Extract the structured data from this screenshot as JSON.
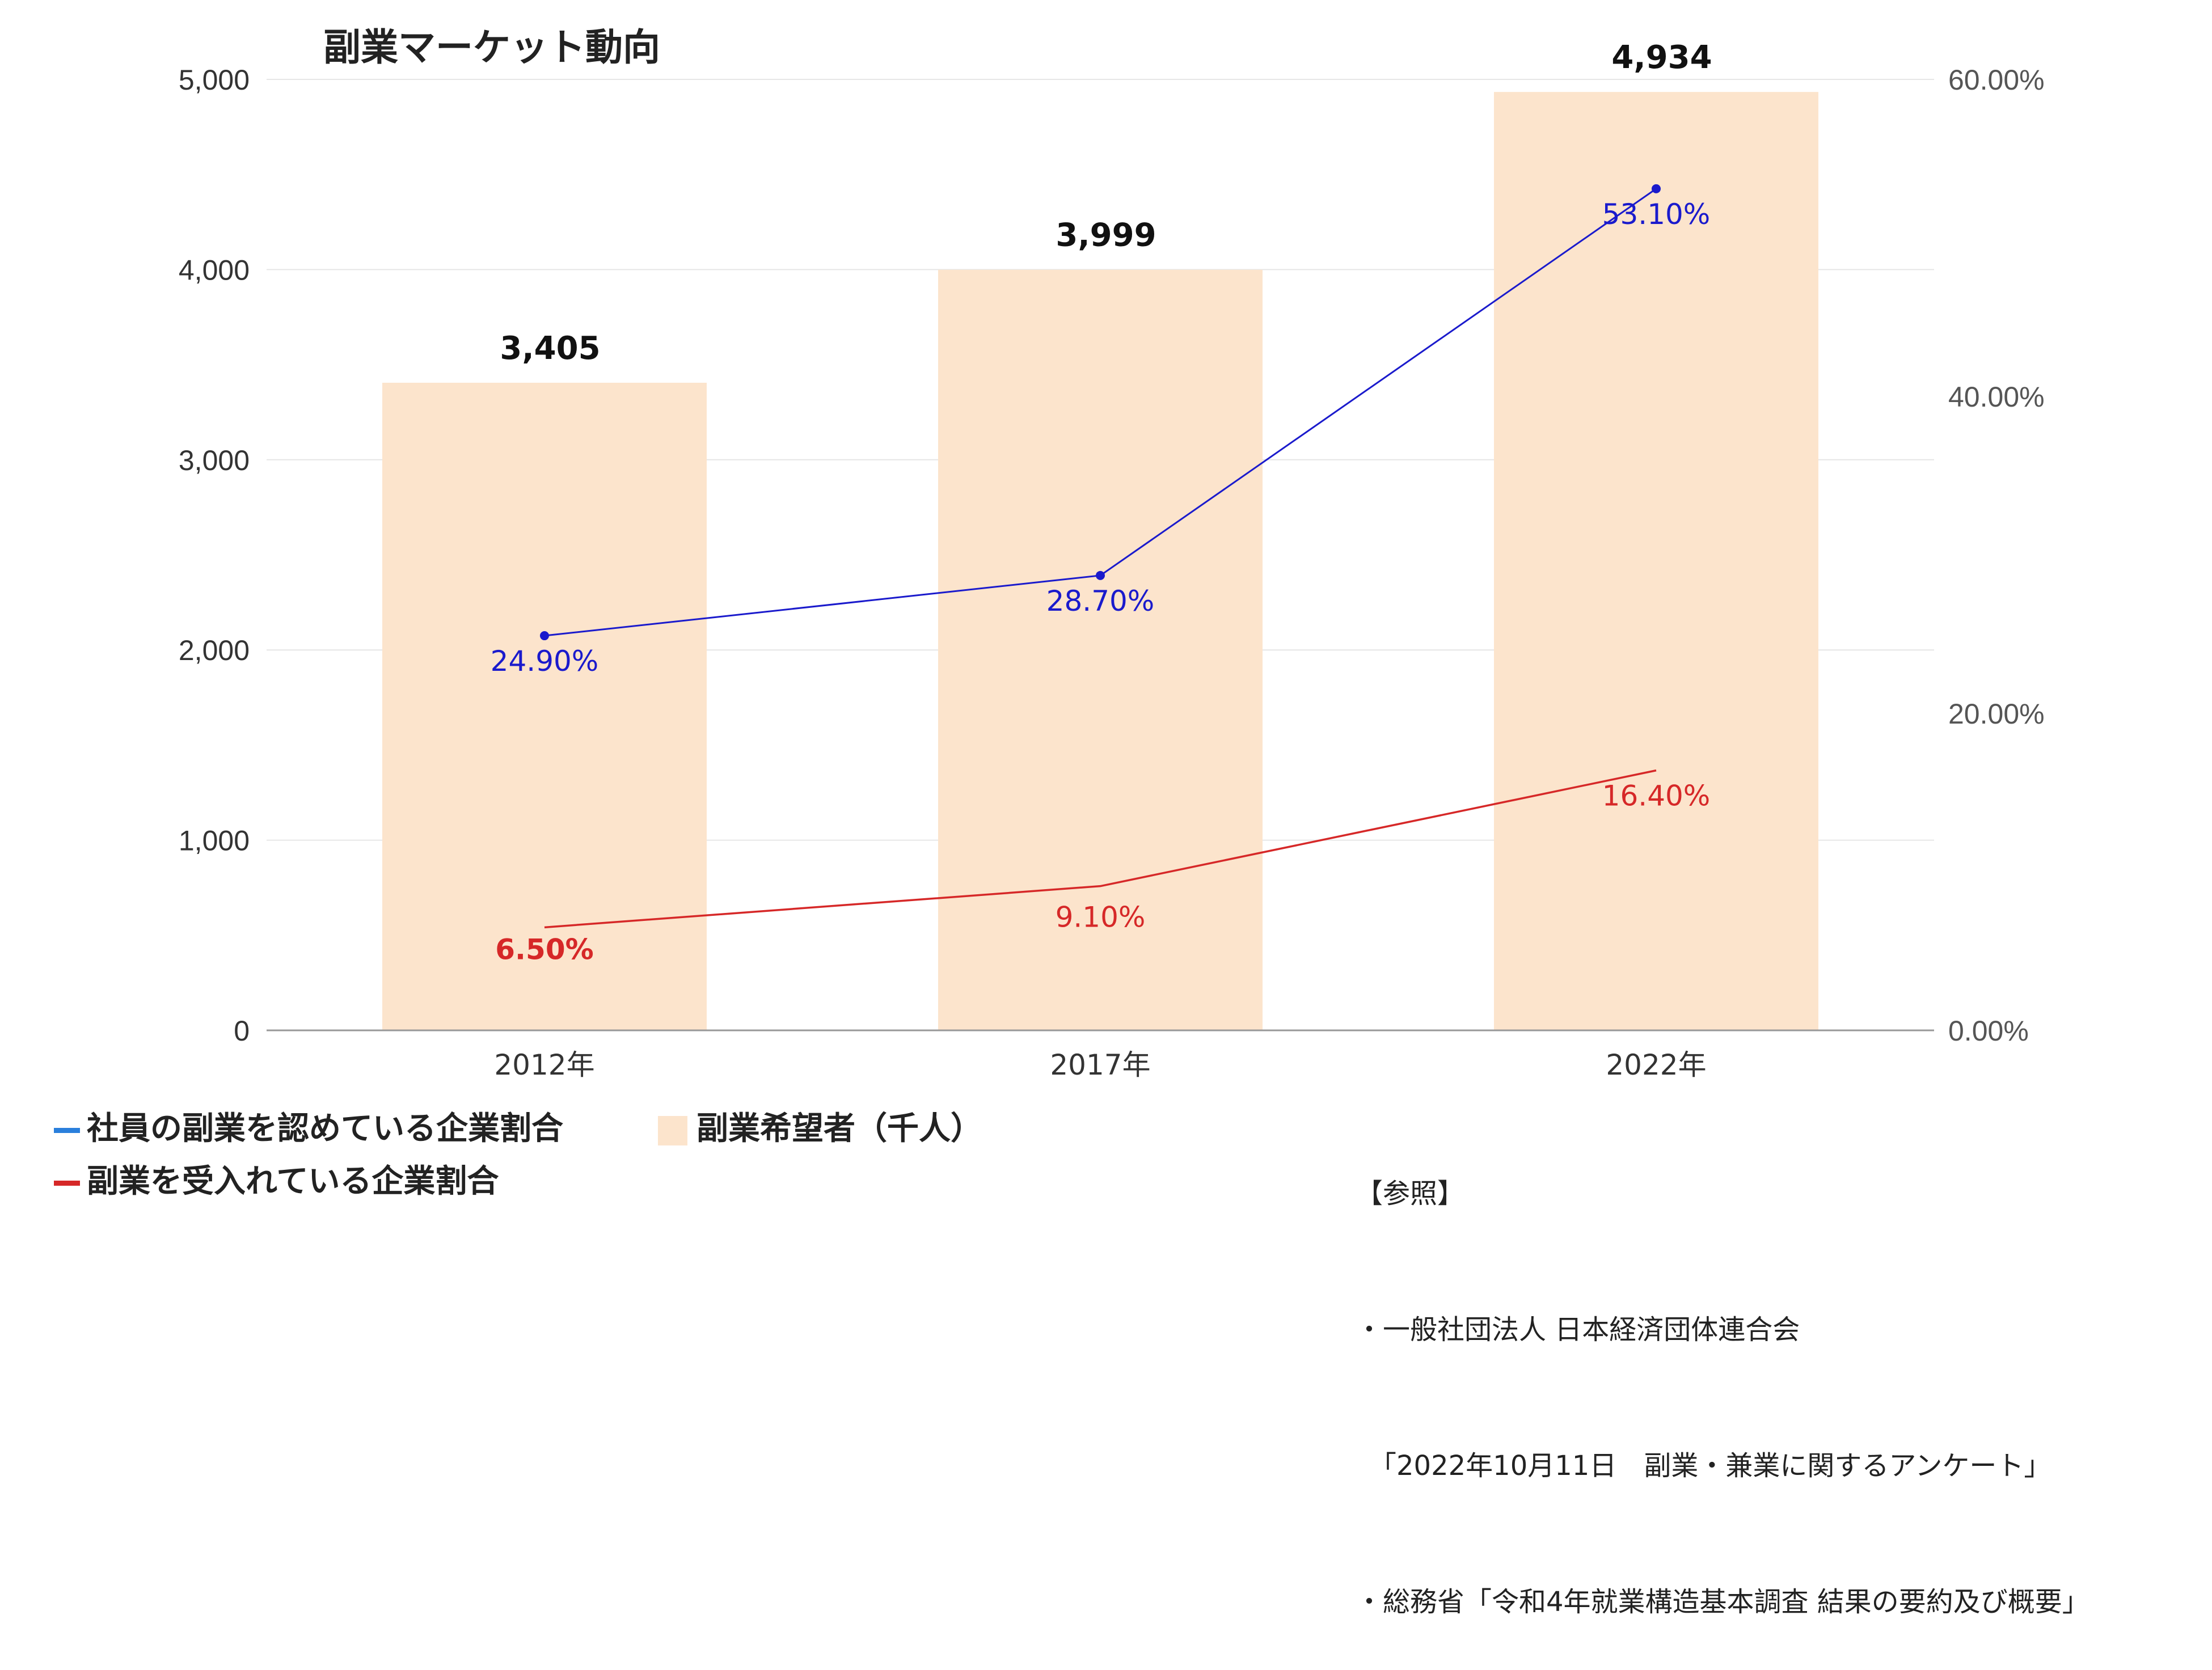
{
  "chart_data": {
    "type": "bar+line",
    "title": "副業マーケット動向",
    "categories": [
      "2012年",
      "2017年",
      "2022年"
    ],
    "bars": {
      "name": "副業希望者（千人）",
      "values": [
        3405,
        3999,
        4934
      ],
      "labels": [
        "3,405",
        "3,999",
        "4,934"
      ],
      "color": "#fce4cc"
    },
    "lines": [
      {
        "name": "社員の副業を認めている企業割合",
        "values": [
          24.9,
          28.7,
          53.1
        ],
        "labels": [
          "24.90%",
          "28.70%",
          "53.10%"
        ],
        "color": "#1a1acc",
        "legend_color": "#2a7fdc"
      },
      {
        "name": "副業を受入れている企業割合",
        "values": [
          6.5,
          9.1,
          16.4
        ],
        "labels": [
          "6.50%",
          "9.10%",
          "16.40%"
        ],
        "color": "#d62828"
      }
    ],
    "y_left": {
      "min": 0,
      "max": 5000,
      "ticks": [
        "0",
        "1,000",
        "2,000",
        "3,000",
        "4,000",
        "5,000"
      ]
    },
    "y_right": {
      "min": 0,
      "max": 60,
      "ticks": [
        "0.00%",
        "20.00%",
        "40.00%",
        "60.00%"
      ]
    },
    "grid": true,
    "legend_position": "bottom-left"
  },
  "references": {
    "heading": "【参照】",
    "lines": [
      "・一般社団法人 日本経済団体連合会",
      "　「2022年10月11日　副業・兼業に関するアンケート」",
      "・総務省「令和4年就業構造基本調査 結果の要約及び概要」"
    ]
  }
}
